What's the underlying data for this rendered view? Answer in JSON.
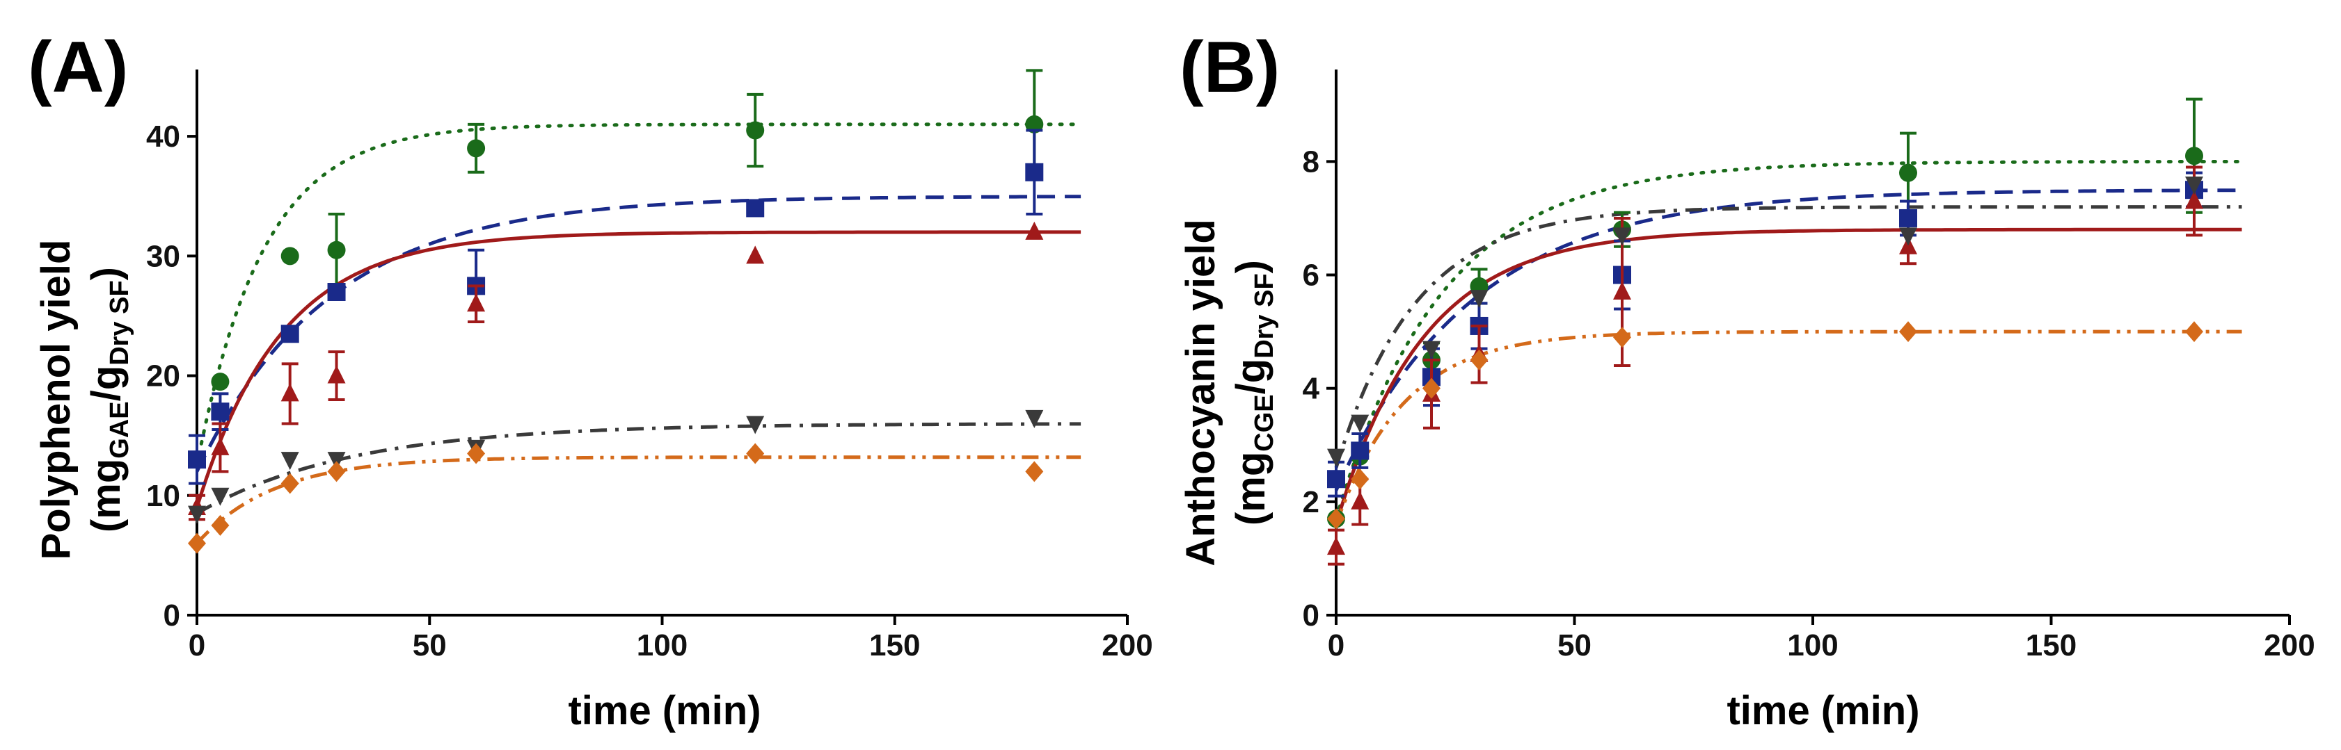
{
  "chart_data": [
    {
      "type": "scatter",
      "panel_label": "(A)",
      "xlabel": "time (min)",
      "ylabel_main": "Polyphenol yield",
      "ylabel_unit": {
        "open": "(mg",
        "sub1": "GAE",
        "slash": "/g",
        "sub2": "Dry SF",
        "close": ")"
      },
      "xlim": [
        0,
        200
      ],
      "ylim": [
        0,
        45
      ],
      "xticks": [
        0,
        50,
        100,
        150,
        200
      ],
      "yticks": [
        0,
        10,
        20,
        30,
        40
      ],
      "series": [
        {
          "name": "green-circle",
          "color": "#1a6b1a",
          "marker": "circle",
          "line": "dotted",
          "x": [
            0,
            5,
            20,
            30,
            60,
            120,
            180
          ],
          "y": [
            13,
            19.5,
            30,
            30.5,
            39,
            40.5,
            41
          ],
          "err": [
            0,
            0,
            0,
            3,
            2,
            3,
            4.5
          ],
          "fit": {
            "a": 12.5,
            "b": 28.5,
            "k": 0.07
          }
        },
        {
          "name": "blue-square",
          "color": "#1a2a8a",
          "marker": "square",
          "line": "dashed",
          "x": [
            0,
            5,
            20,
            30,
            60,
            120,
            180
          ],
          "y": [
            13,
            17,
            23.5,
            27,
            27.5,
            34,
            37
          ],
          "err": [
            2,
            1.5,
            0,
            0,
            3,
            0,
            3.5
          ],
          "fit": {
            "a": 12,
            "b": 23,
            "k": 0.035
          }
        },
        {
          "name": "red-triangle-up",
          "color": "#a01a1a",
          "marker": "triangle-up",
          "line": "solid",
          "x": [
            0,
            5,
            20,
            30,
            60,
            120,
            180
          ],
          "y": [
            9,
            14,
            18.5,
            20,
            26,
            30,
            32
          ],
          "err": [
            1,
            2,
            2.5,
            2,
            1.5,
            0,
            0
          ],
          "fit": {
            "a": 9,
            "b": 23,
            "k": 0.055
          }
        },
        {
          "name": "gray-triangle-down",
          "color": "#3a3a3a",
          "marker": "triangle-down",
          "line": "dashdot",
          "x": [
            0,
            5,
            20,
            30,
            60,
            120,
            180
          ],
          "y": [
            8.5,
            10,
            13,
            13,
            14,
            16,
            16.5
          ],
          "err": [
            0,
            0,
            0,
            0,
            0,
            0,
            0
          ],
          "fit": {
            "a": 8.5,
            "b": 7.5,
            "k": 0.03
          }
        },
        {
          "name": "orange-diamond",
          "color": "#d46a1a",
          "marker": "diamond",
          "line": "dashdotdot",
          "x": [
            0,
            5,
            20,
            30,
            60,
            120,
            180
          ],
          "y": [
            6,
            7.5,
            11,
            12,
            13.5,
            13.5,
            12
          ],
          "err": [
            0,
            0,
            0,
            0,
            0,
            0,
            0
          ],
          "fit": {
            "a": 6,
            "b": 7.2,
            "k": 0.06
          }
        }
      ]
    },
    {
      "type": "scatter",
      "panel_label": "(B)",
      "xlabel": "time (min)",
      "ylabel_main": "Anthocyanin yield",
      "ylabel_unit": {
        "open": "(mg",
        "sub1": "CGE",
        "slash": "/g",
        "sub2": "Dry SF",
        "close": ")"
      },
      "xlim": [
        0,
        200
      ],
      "ylim": [
        0,
        9.5
      ],
      "xticks": [
        0,
        50,
        100,
        150,
        200
      ],
      "yticks": [
        0,
        2,
        4,
        6,
        8
      ],
      "series": [
        {
          "name": "green-circle",
          "color": "#1a6b1a",
          "marker": "circle",
          "line": "dotted",
          "x": [
            0,
            5,
            20,
            30,
            60,
            120,
            180
          ],
          "y": [
            1.7,
            2.8,
            4.5,
            5.8,
            6.8,
            7.8,
            8.1
          ],
          "err": [
            0,
            0,
            0.3,
            0.3,
            0.3,
            0.7,
            1
          ],
          "fit": {
            "a": 1.7,
            "b": 6.3,
            "k": 0.045
          }
        },
        {
          "name": "blue-square",
          "color": "#1a2a8a",
          "marker": "square",
          "line": "dashed",
          "x": [
            0,
            5,
            20,
            30,
            60,
            120,
            180
          ],
          "y": [
            2.4,
            2.9,
            4.2,
            5.1,
            6,
            7,
            7.5
          ],
          "err": [
            0.3,
            0.3,
            0.5,
            0.4,
            0.6,
            0.3,
            0.3
          ],
          "fit": {
            "a": 2.2,
            "b": 5.3,
            "k": 0.035
          }
        },
        {
          "name": "red-triangle-up",
          "color": "#a01a1a",
          "marker": "triangle-up",
          "line": "solid",
          "x": [
            0,
            5,
            20,
            30,
            60,
            120,
            180
          ],
          "y": [
            1.2,
            2,
            3.9,
            4.6,
            5.7,
            6.5,
            7.3
          ],
          "err": [
            0.3,
            0.4,
            0.6,
            0.5,
            1.3,
            0.3,
            0.6
          ],
          "fit": {
            "a": 1.6,
            "b": 5.2,
            "k": 0.055
          }
        },
        {
          "name": "gray-triangle-down",
          "color": "#3a3a3a",
          "marker": "triangle-down",
          "line": "dashdot",
          "x": [
            0,
            5,
            20,
            30,
            60,
            120,
            180
          ],
          "y": [
            2.8,
            3.4,
            4.7,
            5.6,
            6.7,
            6.7,
            7.6
          ],
          "err": [
            0,
            0,
            0,
            0,
            0,
            0,
            0
          ],
          "fit": {
            "a": 2.6,
            "b": 4.6,
            "k": 0.06
          }
        },
        {
          "name": "orange-diamond",
          "color": "#d46a1a",
          "marker": "diamond",
          "line": "dashdotdot",
          "x": [
            0,
            5,
            20,
            30,
            60,
            120,
            180
          ],
          "y": [
            1.7,
            2.4,
            4,
            4.5,
            4.9,
            5,
            5
          ],
          "err": [
            0,
            0,
            0,
            0,
            0,
            0,
            0
          ],
          "fit": {
            "a": 1.6,
            "b": 3.4,
            "k": 0.07
          }
        }
      ]
    }
  ]
}
